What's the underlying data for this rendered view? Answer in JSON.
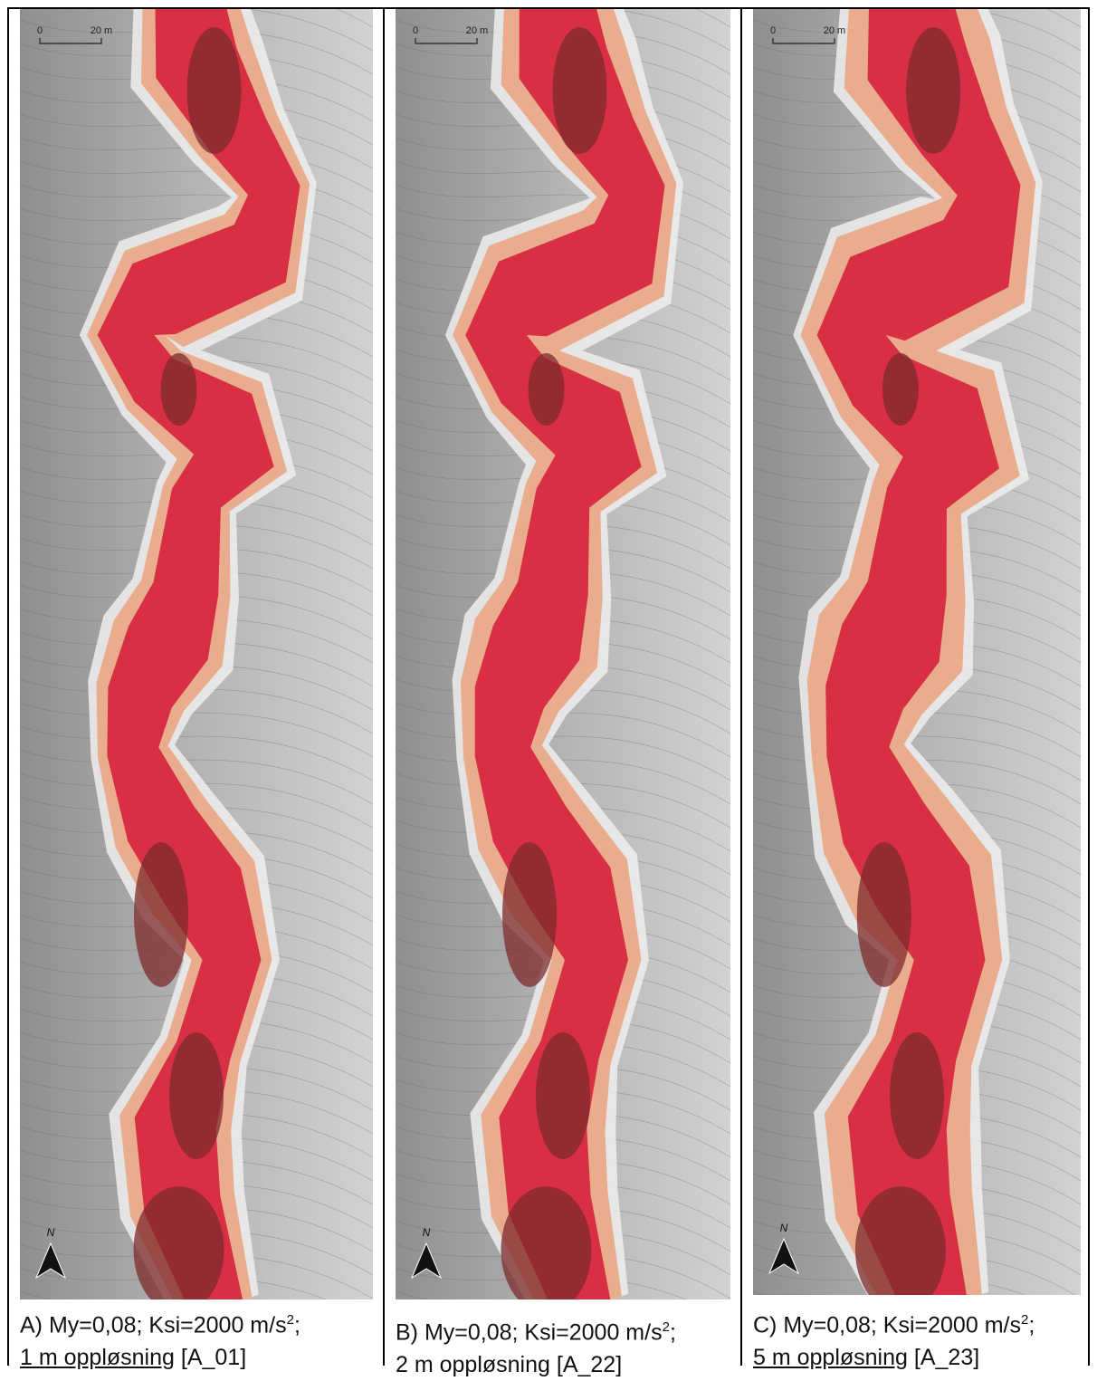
{
  "panels": [
    {
      "scale": {
        "start": "0",
        "end": "20 m"
      },
      "north": "N",
      "caption": {
        "line1": "A) My=0,08; Ksi=2000 m/s",
        "sup": "2",
        "line1_end": ";",
        "line2_underlined": "1 m oppløsning",
        "line2_rest": "[A_01]"
      }
    },
    {
      "scale": {
        "start": "0",
        "end": "20 m"
      },
      "north": "N",
      "caption": {
        "line1": "B) My=0,08; Ksi=2000 m/s",
        "sup": "2",
        "line1_end": ";",
        "line2": "2 m oppløsning [A_22]"
      }
    },
    {
      "scale": {
        "start": "0",
        "end": "20 m"
      },
      "north": "N",
      "caption": {
        "line1": "C) My=0,08; Ksi=2000 m/s",
        "sup": "2",
        "line1_end": ";",
        "line2_underlined": "5 m oppløsning",
        "line2_rest": "[A_23]"
      }
    }
  ]
}
